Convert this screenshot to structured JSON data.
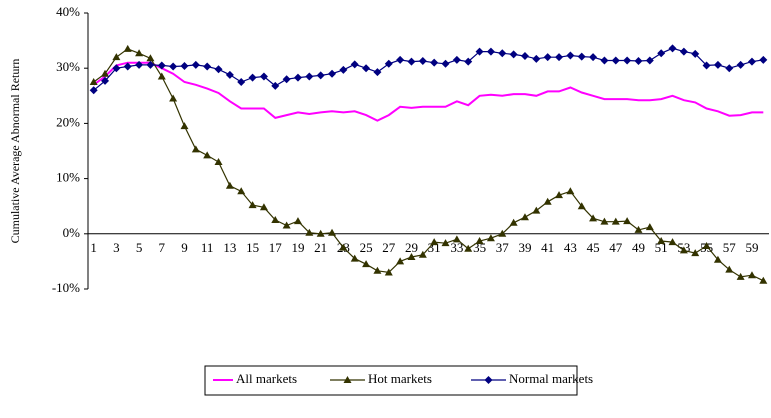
{
  "chart_data": {
    "type": "line",
    "y_label": "Cumulative Average Abnormal Return",
    "categories": [
      1,
      null,
      3,
      null,
      5,
      null,
      7,
      null,
      9,
      null,
      11,
      null,
      13,
      null,
      15,
      null,
      17,
      null,
      19,
      null,
      21,
      null,
      23,
      null,
      25,
      null,
      27,
      null,
      29,
      null,
      31,
      null,
      33,
      null,
      35,
      null,
      37,
      null,
      39,
      null,
      41,
      null,
      43,
      null,
      45,
      null,
      47,
      null,
      49,
      null,
      51,
      null,
      53,
      null,
      55,
      null,
      57,
      null,
      59,
      null
    ],
    "series": [
      {
        "name": "All markets",
        "color": "#ff00ff",
        "marker": "none",
        "values": [
          27,
          28.5,
          30.5,
          31,
          31,
          31,
          30,
          29,
          27.5,
          27,
          26.3,
          25.5,
          24,
          22.7,
          22.7,
          22.7,
          21,
          21.5,
          22,
          21.7,
          22,
          22.2,
          22,
          22.2,
          21.5,
          20.5,
          21.5,
          23,
          22.8,
          23,
          23,
          23,
          24,
          23.3,
          25,
          25.2,
          25,
          25.3,
          25.3,
          25,
          25.8,
          25.8,
          26.5,
          25.6,
          25,
          24.4,
          24.4,
          24.4,
          24.2,
          24.2,
          24.4,
          25,
          24.2,
          23.8,
          22.7,
          22.2,
          21.4,
          21.5,
          22,
          22
        ]
      },
      {
        "name": "Hot markets",
        "color": "#333300",
        "marker": "triangle",
        "values": [
          27.5,
          29,
          32,
          33.5,
          32.7,
          31.8,
          28.5,
          24.5,
          19.5,
          15.3,
          14.2,
          13,
          8.7,
          7.7,
          5.2,
          4.8,
          2.5,
          1.5,
          2.3,
          0.2,
          0,
          0.2,
          -2.5,
          -4.5,
          -5.5,
          -6.7,
          -7,
          -5,
          -4.2,
          -3.8,
          -1.5,
          -1.7,
          -1,
          -2.7,
          -1.3,
          -0.8,
          0,
          2,
          3,
          4.2,
          5.8,
          7,
          7.7,
          5,
          2.8,
          2.2,
          2.2,
          2.3,
          0.7,
          1.2,
          -1.3,
          -1.5,
          -3,
          -3.5,
          -2.2,
          -4.7,
          -6.5,
          -7.8,
          -7.5,
          -8.5
        ]
      },
      {
        "name": "Normal markets",
        "color": "#000080",
        "marker": "diamond",
        "values": [
          26,
          27.7,
          30,
          30.3,
          30.6,
          30.6,
          30.5,
          30.3,
          30.4,
          30.6,
          30.3,
          29.8,
          28.8,
          27.5,
          28.3,
          28.5,
          26.8,
          28,
          28.3,
          28.5,
          28.7,
          29,
          29.7,
          30.7,
          30,
          29.3,
          30.8,
          31.5,
          31.2,
          31.3,
          31,
          30.8,
          31.5,
          31.2,
          33,
          33,
          32.7,
          32.5,
          32.2,
          31.7,
          32,
          32,
          32.3,
          32.1,
          32,
          31.4,
          31.4,
          31.4,
          31.3,
          31.4,
          32.7,
          33.6,
          33,
          32.6,
          30.5,
          30.6,
          30,
          30.6,
          31.2,
          31.5
        ]
      }
    ],
    "ylim": [
      -10,
      40
    ],
    "yticks": [
      {
        "value": -10,
        "label": "-10%"
      },
      {
        "value": 0,
        "label": "0%"
      },
      {
        "value": 10,
        "label": "10%"
      },
      {
        "value": 20,
        "label": "20%"
      },
      {
        "value": 30,
        "label": "30%"
      },
      {
        "value": 40,
        "label": "40%"
      }
    ],
    "grid": false,
    "legend": "bottom"
  }
}
